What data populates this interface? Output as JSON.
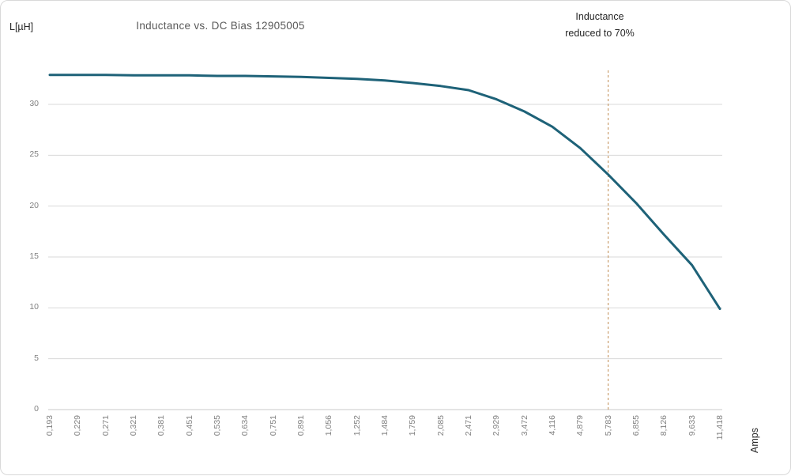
{
  "window": {
    "background": "#ffffff",
    "border_color": "#d9d9d9"
  },
  "chart_data": {
    "type": "line",
    "title": "Inductance vs. DC Bias 12905005",
    "y_axis_label": "L[µH]",
    "x_axis_label": "Amps",
    "annotation": {
      "line1": "Inductance",
      "line2": "reduced to 70%"
    },
    "categories": [
      "0,193",
      "0,229",
      "0,271",
      "0,321",
      "0,381",
      "0,451",
      "0,535",
      "0,634",
      "0,751",
      "0,891",
      "1,056",
      "1,252",
      "1,484",
      "1,759",
      "2,085",
      "2,471",
      "2,929",
      "3,472",
      "4,116",
      "4,879",
      "5,783",
      "6,855",
      "8,126",
      "9,633",
      "11,418"
    ],
    "series": [
      {
        "name": "Inductance",
        "values": [
          32.9,
          32.9,
          32.9,
          32.85,
          32.85,
          32.85,
          32.8,
          32.8,
          32.75,
          32.7,
          32.6,
          32.5,
          32.35,
          32.1,
          31.8,
          31.4,
          30.5,
          29.3,
          27.8,
          25.7,
          23.1,
          20.3,
          17.2,
          14.2,
          9.9
        ]
      }
    ],
    "yticks": [
      0,
      5,
      10,
      15,
      20,
      25,
      30
    ],
    "ylim": [
      0,
      33
    ],
    "grid": true,
    "legend": "none",
    "marker_line": {
      "category": "5,783",
      "style": "dashed",
      "color": "#c08a50"
    },
    "colors": {
      "line": "#1e6278",
      "grid": "#d9d9d9",
      "axis": "#c9c9c9",
      "tick_text": "#808080",
      "title_text": "#595959",
      "text": "#262626"
    }
  }
}
